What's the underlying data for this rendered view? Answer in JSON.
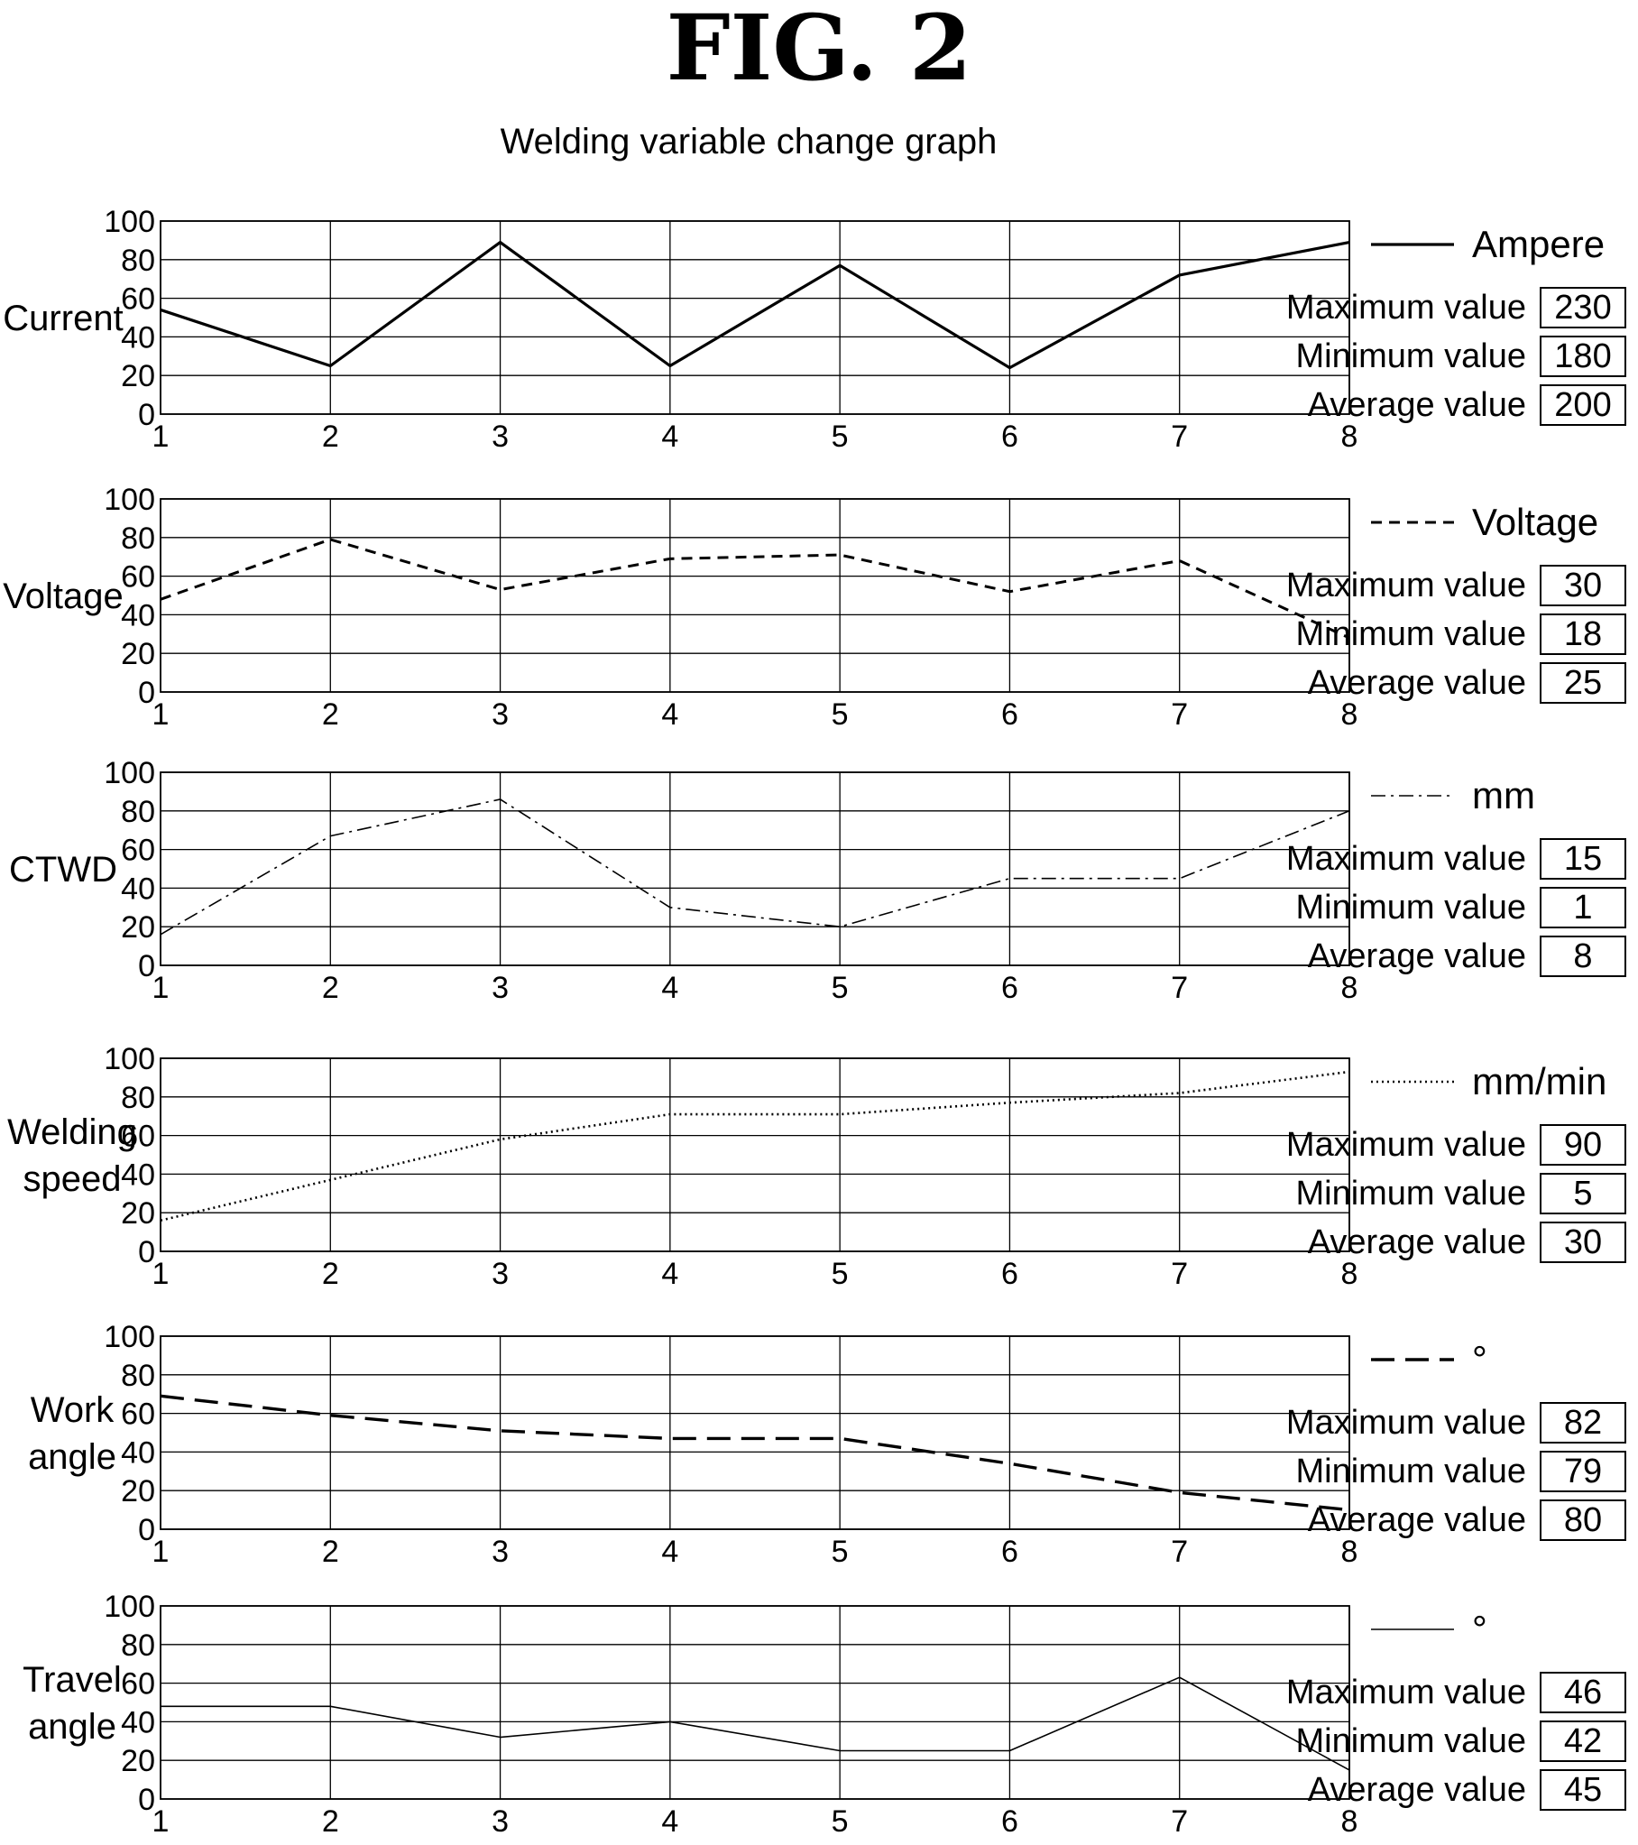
{
  "figure_title": "FIG. 2",
  "subtitle": "Welding variable change graph",
  "chart_data": [
    {
      "type": "line",
      "ylabel_lines": [
        "Current"
      ],
      "x": [
        1,
        2,
        3,
        4,
        5,
        6,
        7,
        8
      ],
      "y": [
        54,
        25,
        89,
        25,
        77,
        24,
        72,
        89
      ],
      "ylim": [
        0,
        100
      ],
      "yticks": [
        0,
        20,
        40,
        60,
        80,
        100
      ],
      "grid": true,
      "line_style": "solid-thick",
      "legend": "Ampere",
      "stats": [
        {
          "label": "Maximum value",
          "value": "230"
        },
        {
          "label": "Minimum value",
          "value": "180"
        },
        {
          "label": "Average value",
          "value": "200"
        }
      ]
    },
    {
      "type": "line",
      "ylabel_lines": [
        "Voltage"
      ],
      "x": [
        1,
        2,
        3,
        4,
        5,
        6,
        7,
        8
      ],
      "y": [
        48,
        79,
        53,
        69,
        71,
        52,
        68,
        28
      ],
      "ylim": [
        0,
        100
      ],
      "yticks": [
        0,
        20,
        40,
        60,
        80,
        100
      ],
      "grid": true,
      "line_style": "dashed",
      "legend": "Voltage",
      "stats": [
        {
          "label": "Maximum value",
          "value": "30"
        },
        {
          "label": "Minimum value",
          "value": "18"
        },
        {
          "label": "Average value",
          "value": "25"
        }
      ]
    },
    {
      "type": "line",
      "ylabel_lines": [
        "CTWD"
      ],
      "x": [
        1,
        2,
        3,
        4,
        5,
        6,
        7,
        8
      ],
      "y": [
        16,
        67,
        86,
        30,
        20,
        45,
        45,
        80
      ],
      "ylim": [
        0,
        100
      ],
      "yticks": [
        0,
        20,
        40,
        60,
        80,
        100
      ],
      "grid": true,
      "line_style": "dash-dot",
      "legend": "mm",
      "stats": [
        {
          "label": "Maximum value",
          "value": "15"
        },
        {
          "label": "Minimum value",
          "value": "1"
        },
        {
          "label": "Average value",
          "value": "8"
        }
      ]
    },
    {
      "type": "line",
      "ylabel_lines": [
        "Welding",
        "speed"
      ],
      "x": [
        1,
        2,
        3,
        4,
        5,
        6,
        7,
        8
      ],
      "y": [
        16,
        37,
        58,
        71,
        71,
        77,
        82,
        93
      ],
      "ylim": [
        0,
        100
      ],
      "yticks": [
        0,
        20,
        40,
        60,
        80,
        100
      ],
      "grid": true,
      "line_style": "dotted",
      "legend": "mm/min",
      "stats": [
        {
          "label": "Maximum value",
          "value": "90"
        },
        {
          "label": "Minimum value",
          "value": "5"
        },
        {
          "label": "Average value",
          "value": "30"
        }
      ]
    },
    {
      "type": "line",
      "ylabel_lines": [
        "Work",
        "angle"
      ],
      "x": [
        1,
        2,
        3,
        4,
        5,
        6,
        7,
        8
      ],
      "y": [
        69,
        59,
        51,
        47,
        47,
        34,
        19,
        10
      ],
      "ylim": [
        0,
        100
      ],
      "yticks": [
        0,
        20,
        40,
        60,
        80,
        100
      ],
      "grid": true,
      "line_style": "long-dash",
      "legend": "°",
      "stats": [
        {
          "label": "Maximum value",
          "value": "82"
        },
        {
          "label": "Minimum value",
          "value": "79"
        },
        {
          "label": "Average value",
          "value": "80"
        }
      ]
    },
    {
      "type": "line",
      "ylabel_lines": [
        "Travel",
        "angle"
      ],
      "x": [
        1,
        2,
        3,
        4,
        5,
        6,
        7,
        8
      ],
      "y": [
        48,
        48,
        32,
        40,
        25,
        25,
        63,
        15
      ],
      "ylim": [
        0,
        100
      ],
      "yticks": [
        0,
        20,
        40,
        60,
        80,
        100
      ],
      "grid": true,
      "line_style": "solid-thin",
      "legend": "°",
      "stats": [
        {
          "label": "Maximum value",
          "value": "46"
        },
        {
          "label": "Minimum value",
          "value": "42"
        },
        {
          "label": "Average value",
          "value": "45"
        }
      ]
    }
  ]
}
